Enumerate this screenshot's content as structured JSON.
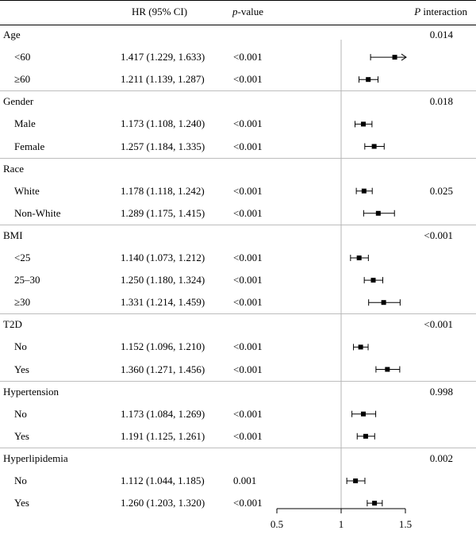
{
  "header": {
    "hr_ci": "HR (95% CI)",
    "p_value_italic": "p",
    "p_value_rest": "-value",
    "p_interaction_italic": "P",
    "p_interaction_rest": " interaction"
  },
  "groups": [
    {
      "label": "Age",
      "p_interaction": "0.014",
      "rows": [
        {
          "label": "<60",
          "hr_ci": "1.417 (1.229, 1.633)",
          "p": "<0.001"
        },
        {
          "label": "≥60",
          "hr_ci": "1.211 (1.139, 1.287)",
          "p": "<0.001"
        }
      ]
    },
    {
      "label": "Gender",
      "p_interaction": "0.018",
      "rows": [
        {
          "label": "Male",
          "hr_ci": "1.173 (1.108, 1.240)",
          "p": "<0.001"
        },
        {
          "label": "Female",
          "hr_ci": "1.257 (1.184, 1.335)",
          "p": "<0.001"
        }
      ]
    },
    {
      "label": "Race",
      "p_interaction": "0.025",
      "rows": [
        {
          "label": "White",
          "hr_ci": "1.178 (1.118, 1.242)",
          "p": "<0.001"
        },
        {
          "label": "Non-White",
          "hr_ci": "1.289 (1.175, 1.415)",
          "p": "<0.001"
        }
      ]
    },
    {
      "label": "BMI",
      "p_interaction": "<0.001",
      "rows": [
        {
          "label": "<25",
          "hr_ci": "1.140 (1.073, 1.212)",
          "p": "<0.001"
        },
        {
          "label": "25–30",
          "hr_ci": "1.250 (1.180, 1.324)",
          "p": "<0.001"
        },
        {
          "label": "≥30",
          "hr_ci": "1.331 (1.214, 1.459)",
          "p": "<0.001"
        }
      ]
    },
    {
      "label": "T2D",
      "p_interaction": "<0.001",
      "rows": [
        {
          "label": "No",
          "hr_ci": "1.152 (1.096, 1.210)",
          "p": "<0.001"
        },
        {
          "label": "Yes",
          "hr_ci": "1.360 (1.271, 1.456)",
          "p": "<0.001"
        }
      ]
    },
    {
      "label": "Hypertension",
      "p_interaction": "0.998",
      "rows": [
        {
          "label": "No",
          "hr_ci": "1.173 (1.084, 1.269)",
          "p": "<0.001"
        },
        {
          "label": "Yes",
          "hr_ci": "1.191 (1.125, 1.261)",
          "p": "<0.001"
        }
      ]
    },
    {
      "label": "Hyperlipidemia",
      "p_interaction": "0.002",
      "rows": [
        {
          "label": "No",
          "hr_ci": "1.112 (1.044, 1.185)",
          "p": "0.001"
        },
        {
          "label": "Yes",
          "hr_ci": "1.260 (1.203, 1.320)",
          "p": "<0.001"
        }
      ]
    }
  ],
  "chart_data": {
    "type": "scatter",
    "subtype": "forest-plot",
    "x_axis": {
      "range": [
        0.5,
        1.5
      ],
      "ticks": [
        0.5,
        1,
        1.5
      ],
      "tick_labels": [
        "0.5",
        "1",
        "1.5"
      ],
      "reference_line": 1
    },
    "points": [
      {
        "group": "Age",
        "label": "<60",
        "hr": 1.417,
        "lower": 1.229,
        "upper": 1.633,
        "truncated_upper": true
      },
      {
        "group": "Age",
        "label": "≥60",
        "hr": 1.211,
        "lower": 1.139,
        "upper": 1.287
      },
      {
        "group": "Gender",
        "label": "Male",
        "hr": 1.173,
        "lower": 1.108,
        "upper": 1.24
      },
      {
        "group": "Gender",
        "label": "Female",
        "hr": 1.257,
        "lower": 1.184,
        "upper": 1.335
      },
      {
        "group": "Race",
        "label": "White",
        "hr": 1.178,
        "lower": 1.118,
        "upper": 1.242
      },
      {
        "group": "Race",
        "label": "Non-White",
        "hr": 1.289,
        "lower": 1.175,
        "upper": 1.415
      },
      {
        "group": "BMI",
        "label": "<25",
        "hr": 1.14,
        "lower": 1.073,
        "upper": 1.212
      },
      {
        "group": "BMI",
        "label": "25–30",
        "hr": 1.25,
        "lower": 1.18,
        "upper": 1.324
      },
      {
        "group": "BMI",
        "label": "≥30",
        "hr": 1.331,
        "lower": 1.214,
        "upper": 1.459
      },
      {
        "group": "T2D",
        "label": "No",
        "hr": 1.152,
        "lower": 1.096,
        "upper": 1.21
      },
      {
        "group": "T2D",
        "label": "Yes",
        "hr": 1.36,
        "lower": 1.271,
        "upper": 1.456
      },
      {
        "group": "Hypertension",
        "label": "No",
        "hr": 1.173,
        "lower": 1.084,
        "upper": 1.269
      },
      {
        "group": "Hypertension",
        "label": "Yes",
        "hr": 1.191,
        "lower": 1.125,
        "upper": 1.261
      },
      {
        "group": "Hyperlipidemia",
        "label": "No",
        "hr": 1.112,
        "lower": 1.044,
        "upper": 1.185
      },
      {
        "group": "Hyperlipidemia",
        "label": "Yes",
        "hr": 1.26,
        "lower": 1.203,
        "upper": 1.32
      }
    ]
  }
}
